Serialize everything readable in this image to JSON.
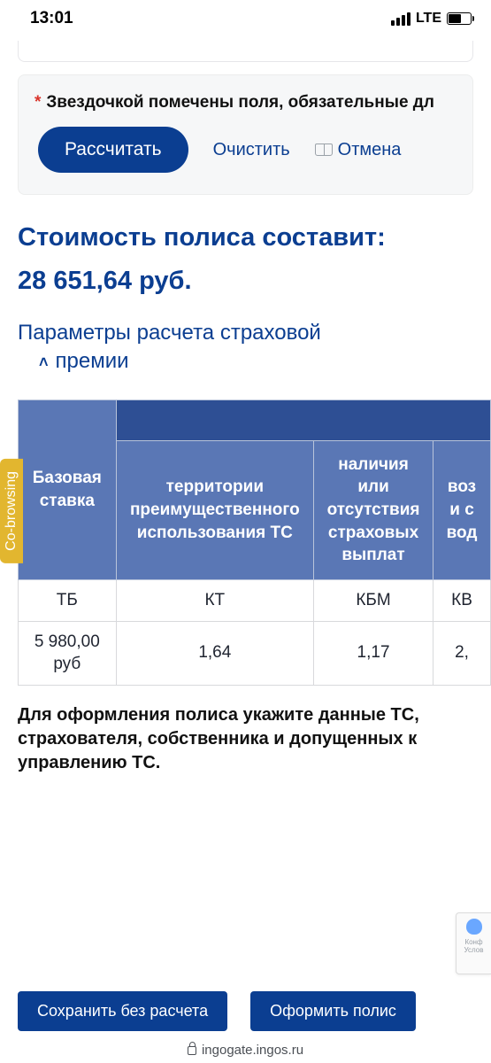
{
  "status": {
    "time": "13:01",
    "network_label": "LTE",
    "battery_pct": 55,
    "signal_bars_active": 3
  },
  "form_footer": {
    "required_note": "Звездочкой помечены поля, обязательные дл",
    "calculate_label": "Рассчитать",
    "clear_label": "Очистить",
    "cancel_label": "Отмена"
  },
  "cost": {
    "heading": "Стоимость полиса составит:",
    "amount": "28 651,64 руб."
  },
  "params": {
    "heading_line1": "Параметры расчета страховой",
    "heading_line2": "премии",
    "caret": "⌃"
  },
  "cobrowsing_label": "Co-browsing",
  "table": {
    "columns": [
      {
        "header": "Базовая ставка",
        "code": "ТБ",
        "value": "5 980,00 руб"
      },
      {
        "header": "территории преимущественного использования ТС",
        "code": "КТ",
        "value": "1,64"
      },
      {
        "header": "наличия или отсутствия страховых выплат",
        "code": "КБМ",
        "value": "1,17"
      },
      {
        "header": "воз и с вод",
        "code": "КВ",
        "value": "2,"
      }
    ],
    "header_bg": "#5a77b5",
    "header_top_bg": "#2e4f94",
    "border_color": "#d8d9dc",
    "text_color": "#1f2430"
  },
  "instruction": "Для оформления полиса укажите данные ТС, страхователя, собственника и допущенных к управлению ТС.",
  "captcha": {
    "line1": "Конф",
    "line2": "Услов"
  },
  "bottom": {
    "save_label": "Сохранить без расчета",
    "submit_label": "Оформить полис"
  },
  "url": "ingogate.ingos.ru",
  "colors": {
    "primary": "#0b3e91",
    "accent_yellow": "#e2b62f",
    "table_header": "#5a77b5"
  }
}
